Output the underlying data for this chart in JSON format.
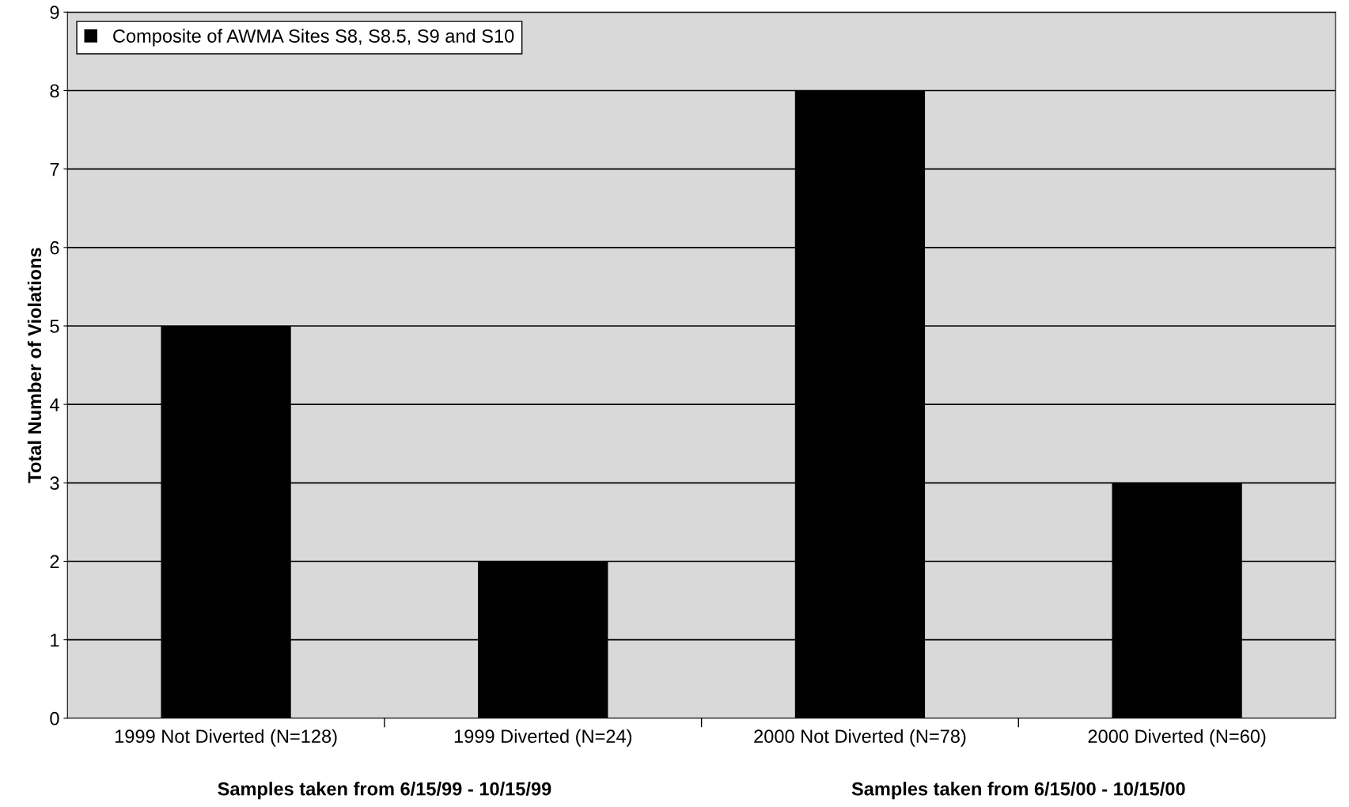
{
  "chart_data": {
    "type": "bar",
    "ylabel": "Total Number of Violations",
    "categories": [
      "1999 Not Diverted (N=128)",
      "1999 Diverted (N=24)",
      "2000 Not Diverted (N=78)",
      "2000 Diverted (N=60)"
    ],
    "series": [
      {
        "name": "Composite of AWMA Sites S8, S8.5, S9 and S10",
        "color": "#000000",
        "values": [
          5,
          2,
          8,
          3
        ]
      }
    ],
    "ylim": [
      0,
      9
    ],
    "yticks": [
      0,
      1,
      2,
      3,
      4,
      5,
      6,
      7,
      8,
      9
    ],
    "grid": "y",
    "legend": "top left",
    "annotations": [
      "Samples taken from 6/15/99 - 10/15/99",
      "Samples taken from 6/15/00 - 10/15/00"
    ]
  }
}
